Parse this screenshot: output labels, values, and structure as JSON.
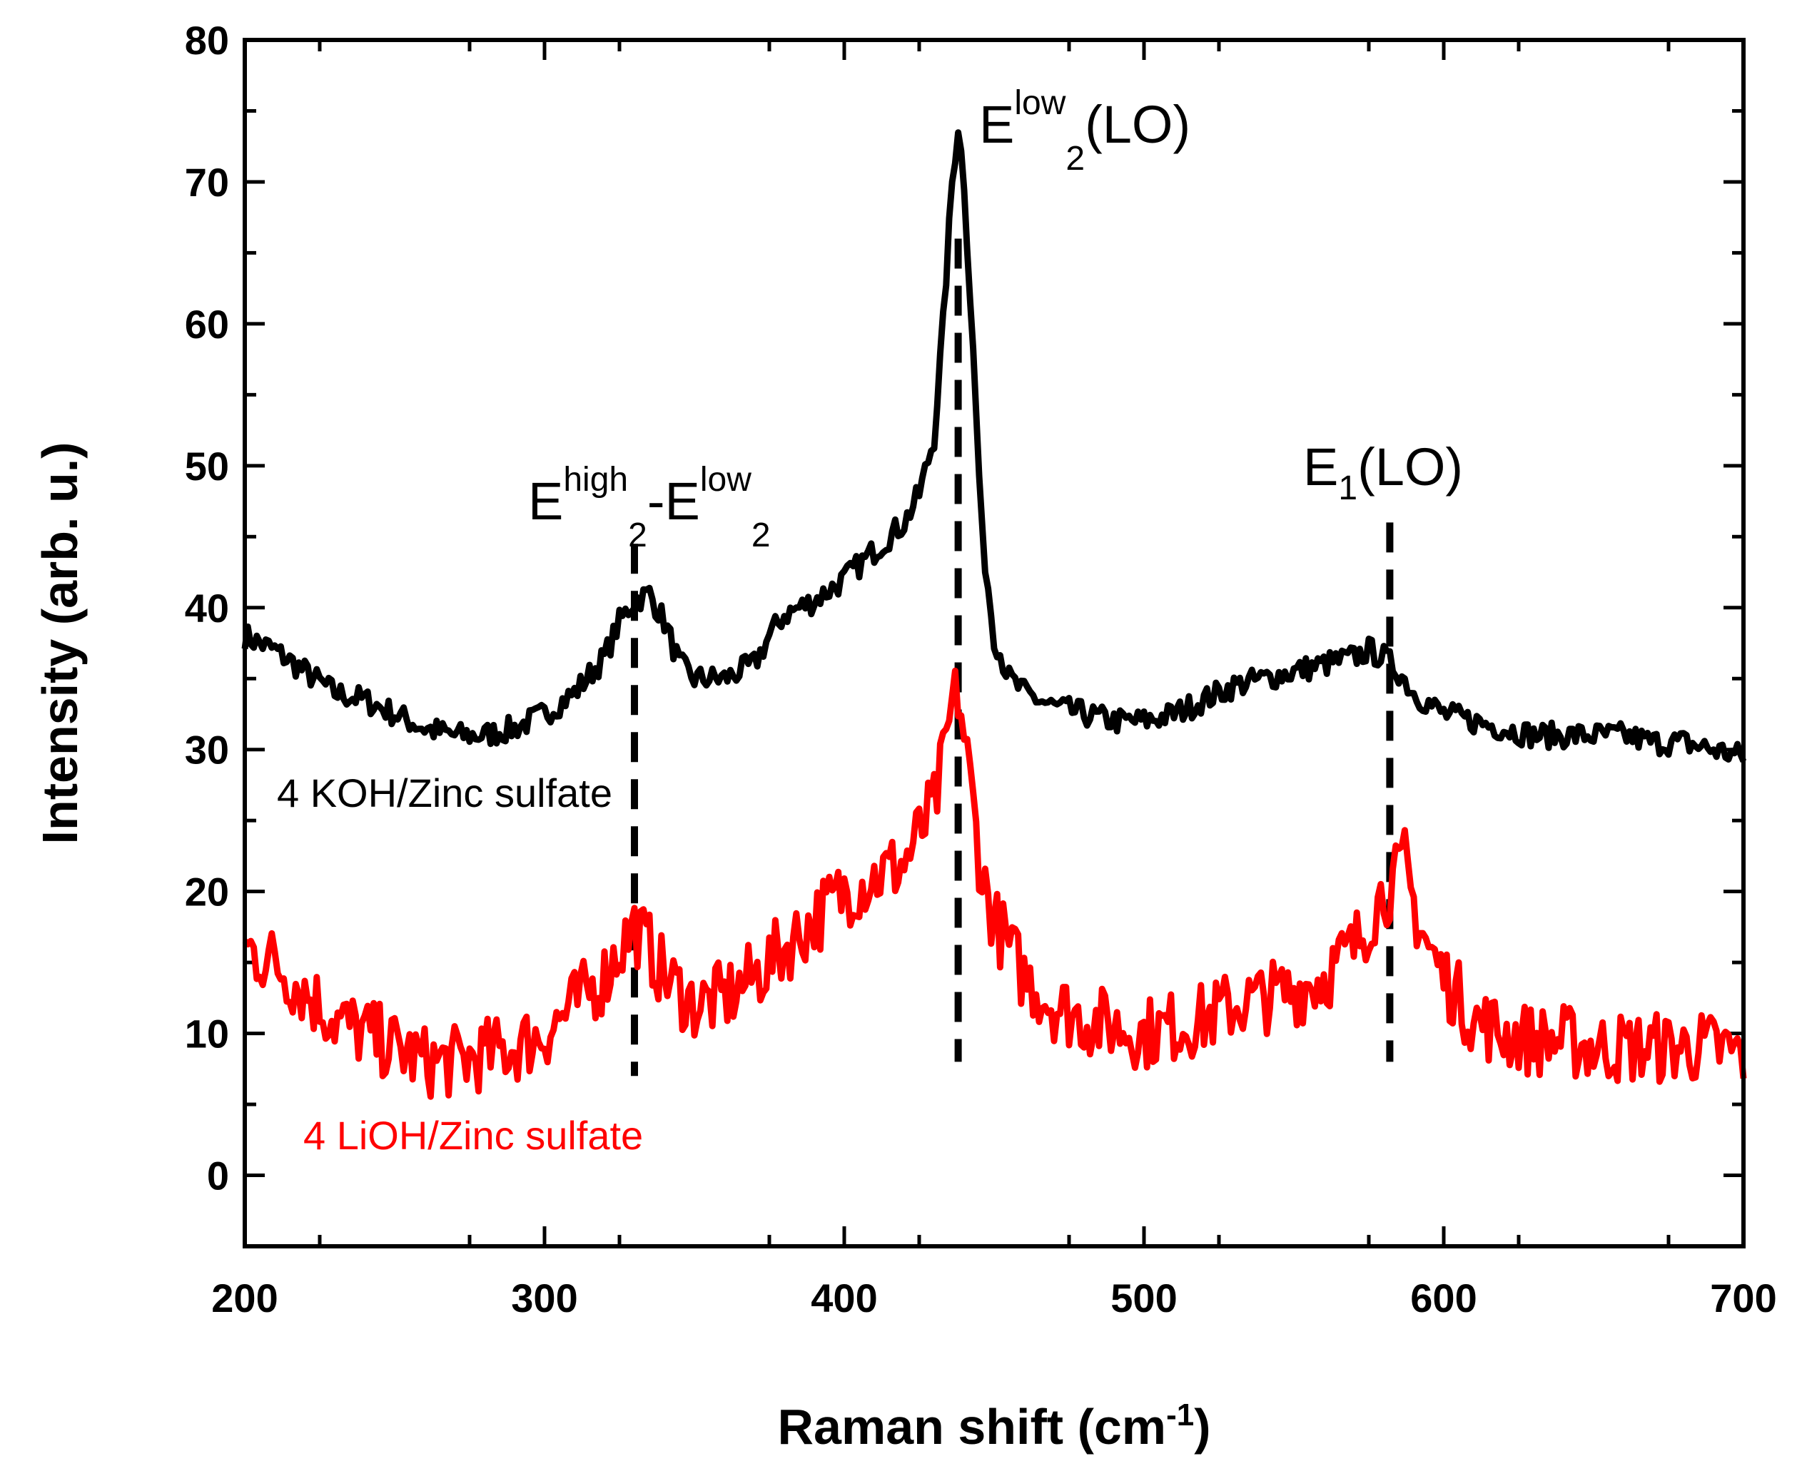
{
  "chart_data": {
    "type": "line",
    "title": "",
    "xlabel": "Raman shift (cm",
    "xlabel_sup": "-1",
    "xlabel_end": ")",
    "ylabel": "Intensity (arb. u.)",
    "xlim": [
      200,
      700
    ],
    "ylim": [
      -5,
      80
    ],
    "x_ticks": [
      "200",
      "300",
      "400",
      "500",
      "600",
      "700"
    ],
    "x_tick_values": [
      200,
      300,
      400,
      500,
      600,
      700
    ],
    "y_ticks": [
      "0",
      "10",
      "20",
      "30",
      "40",
      "50",
      "60",
      "70",
      "80"
    ],
    "y_tick_values": [
      0,
      10,
      20,
      30,
      40,
      50,
      60,
      70,
      80
    ],
    "colors": {
      "koh": "#000000",
      "lioh": "#ff0000",
      "guide": "#000000"
    },
    "series": [
      {
        "name": "4 KOH/Zinc sulfate",
        "color": "#000000",
        "x": [
          200,
          210,
          220,
          230,
          240,
          250,
          260,
          270,
          280,
          290,
          300,
          310,
          320,
          325,
          330,
          335,
          340,
          345,
          350,
          360,
          370,
          375,
          380,
          390,
          400,
          410,
          420,
          425,
          430,
          433,
          436,
          438,
          440,
          443,
          446,
          450,
          455,
          460,
          470,
          480,
          490,
          500,
          510,
          520,
          530,
          540,
          550,
          560,
          570,
          575,
          580,
          585,
          590,
          600,
          610,
          620,
          630,
          640,
          650,
          660,
          670,
          680,
          690,
          700
        ],
        "y": [
          38,
          37,
          35.5,
          34,
          33.5,
          32.5,
          31.5,
          31,
          31,
          31.5,
          32.5,
          34,
          36.5,
          39,
          40.5,
          41,
          39,
          36,
          35,
          35,
          36,
          38,
          39.5,
          40.5,
          42,
          44,
          46,
          48,
          52,
          60,
          70,
          74,
          70,
          58,
          45,
          38,
          35,
          34,
          33,
          32.5,
          32,
          32,
          32.5,
          33.5,
          34.5,
          35,
          35.5,
          36,
          36.5,
          37,
          36.5,
          35.5,
          34,
          32.5,
          32,
          31.5,
          31,
          31,
          31,
          31,
          30.5,
          30.5,
          30,
          29.5
        ]
      },
      {
        "name": "4 LiOH/Zinc sulfate",
        "color": "#ff0000",
        "x": [
          200,
          210,
          220,
          230,
          240,
          250,
          260,
          270,
          280,
          290,
          300,
          310,
          320,
          325,
          330,
          335,
          340,
          345,
          350,
          360,
          370,
          380,
          390,
          400,
          410,
          420,
          425,
          430,
          433,
          436,
          438,
          440,
          443,
          446,
          450,
          455,
          460,
          470,
          480,
          490,
          500,
          510,
          520,
          530,
          540,
          550,
          560,
          570,
          575,
          580,
          585,
          587,
          590,
          595,
          600,
          610,
          620,
          630,
          640,
          650,
          660,
          670,
          680,
          690,
          700
        ],
        "y": [
          16,
          15,
          13,
          11,
          10,
          9,
          8,
          8,
          8.5,
          9,
          10,
          12,
          14,
          16,
          17.5,
          16,
          14,
          13,
          12,
          12.5,
          14,
          16,
          18,
          20,
          21,
          22,
          24,
          26,
          29,
          33,
          34,
          31,
          26,
          21,
          18,
          16,
          14,
          12,
          11,
          10.5,
          10,
          10.5,
          11,
          12,
          12.5,
          13,
          14,
          16,
          18,
          20,
          21,
          22,
          19,
          16,
          14,
          11,
          10,
          9.5,
          9.5,
          9,
          9,
          9,
          9,
          9,
          8.5
        ]
      }
    ],
    "series_labels": [
      {
        "text": "4 KOH/Zinc sulfate",
        "color": "#000000"
      },
      {
        "text": "4 LiOH/Zinc sulfate",
        "color": "#ff0000"
      }
    ],
    "guide_lines_x": [
      330,
      438,
      582
    ],
    "annotations": {
      "peak1": {
        "base1": "E",
        "sup1": "high",
        "sub1": "2",
        "dash": "-",
        "base2": "E",
        "sup2": "low",
        "sub2": "2"
      },
      "peak2": {
        "base": "E",
        "sup": "low",
        "sub": "2",
        "tail": "(LO)"
      },
      "peak3": {
        "base": "E",
        "sub": "1",
        "tail": "(LO)"
      }
    }
  }
}
